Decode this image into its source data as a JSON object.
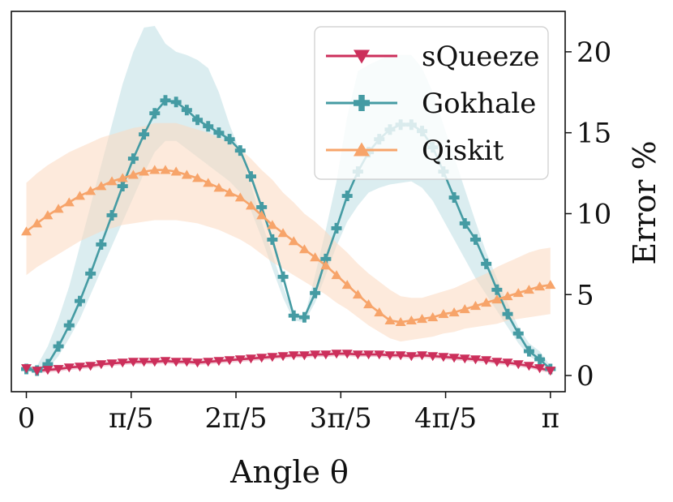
{
  "chart_data": {
    "type": "line",
    "xlabel": "Angle θ",
    "ylabel": "Error %",
    "xlim": [
      -0.09,
      3.23
    ],
    "ylim": [
      -1.0,
      22.5
    ],
    "xticks": [
      {
        "value": 0,
        "label": "0"
      },
      {
        "value": 0.6283,
        "label": "π/5"
      },
      {
        "value": 1.2566,
        "label": "2π/5"
      },
      {
        "value": 1.885,
        "label": "3π/5"
      },
      {
        "value": 2.5133,
        "label": "4π/5"
      },
      {
        "value": 3.1416,
        "label": "π"
      }
    ],
    "yticks": [
      0,
      5,
      10,
      15,
      20
    ],
    "yaxis_side": "right",
    "grid": false,
    "legend_position": "top-right",
    "series": [
      {
        "name": "sQueeze",
        "color": "#cc2f5b",
        "marker": "triangle-down",
        "x": [
          0,
          0.0641,
          0.1282,
          0.1923,
          0.2564,
          0.3206,
          0.3847,
          0.4488,
          0.5129,
          0.577,
          0.6411,
          0.7052,
          0.7693,
          0.8335,
          0.8976,
          0.9617,
          1.0258,
          1.0899,
          1.154,
          1.2181,
          1.2822,
          1.3464,
          1.4105,
          1.4746,
          1.5387,
          1.6028,
          1.6669,
          1.731,
          1.7952,
          1.8593,
          1.9234,
          1.9875,
          2.0516,
          2.1157,
          2.1798,
          2.2439,
          2.3081,
          2.3722,
          2.4363,
          2.5004,
          2.5645,
          2.6286,
          2.6927,
          2.7568,
          2.821,
          2.8851,
          2.9492,
          3.0133,
          3.0774,
          3.1416
        ],
        "y": [
          0.45,
          0.3,
          0.35,
          0.4,
          0.5,
          0.55,
          0.6,
          0.7,
          0.75,
          0.8,
          0.85,
          0.85,
          0.85,
          0.9,
          0.85,
          0.85,
          0.8,
          0.85,
          0.9,
          0.95,
          1.0,
          1.05,
          1.1,
          1.15,
          1.2,
          1.25,
          1.25,
          1.3,
          1.3,
          1.35,
          1.35,
          1.3,
          1.3,
          1.3,
          1.25,
          1.25,
          1.2,
          1.25,
          1.2,
          1.15,
          1.1,
          1.05,
          1.0,
          0.95,
          0.85,
          0.8,
          0.7,
          0.6,
          0.45,
          0.3
        ],
        "band_halfwidth": 0.15
      },
      {
        "name": "Gokhale",
        "color": "#459ba3",
        "band_color": "#bddfe3",
        "marker": "plus",
        "x": [
          0,
          0.0641,
          0.1282,
          0.1923,
          0.2564,
          0.3206,
          0.3847,
          0.4488,
          0.5129,
          0.577,
          0.6411,
          0.7052,
          0.7693,
          0.8335,
          0.8976,
          0.9617,
          1.0258,
          1.0899,
          1.154,
          1.2181,
          1.2822,
          1.3464,
          1.4105,
          1.4746,
          1.5387,
          1.6028,
          1.6669,
          1.731,
          1.7952,
          1.8593,
          1.9234,
          1.9875,
          2.0516,
          2.1157,
          2.1798,
          2.2439,
          2.3081,
          2.3722,
          2.4363,
          2.5004,
          2.5645,
          2.6286,
          2.6927,
          2.7568,
          2.821,
          2.8851,
          2.9492,
          3.0133,
          3.0774,
          3.1416
        ],
        "y": [
          0.4,
          0.3,
          0.7,
          1.8,
          3.1,
          4.6,
          6.3,
          8.1,
          9.9,
          11.7,
          13.4,
          14.9,
          16.2,
          17.0,
          16.9,
          16.4,
          15.8,
          15.4,
          15.0,
          14.6,
          13.9,
          12.3,
          10.4,
          8.4,
          6.1,
          3.7,
          3.6,
          5.1,
          7.2,
          9.1,
          11.1,
          12.6,
          13.8,
          14.6,
          15.2,
          15.5,
          15.5,
          15.1,
          14.1,
          12.6,
          11.0,
          9.4,
          8.4,
          6.9,
          5.3,
          3.8,
          2.6,
          1.5,
          1.0,
          0.4
        ],
        "upper": [
          0.5,
          0.6,
          1.8,
          3.5,
          5.5,
          8.0,
          10.5,
          13.0,
          15.5,
          18.0,
          20.0,
          21.5,
          21.6,
          20.5,
          20.0,
          19.8,
          19.5,
          19.0,
          17.5,
          15.5,
          13.8,
          11.8,
          9.5,
          7.5,
          5.5,
          3.8,
          3.6,
          6.2,
          9.0,
          12.0,
          16.0,
          18.8,
          19.2,
          19.5,
          19.8,
          19.8,
          19.8,
          19.0,
          17.5,
          15.5,
          13.5,
          11.5,
          9.5,
          7.6,
          6.0,
          4.5,
          3.0,
          2.0,
          1.5,
          0.6
        ],
        "lower": [
          0.3,
          0.2,
          0.4,
          1.2,
          2.3,
          3.5,
          5.0,
          6.5,
          8.0,
          9.5,
          11.0,
          12.5,
          13.8,
          14.5,
          14.5,
          14.0,
          13.5,
          13.0,
          12.5,
          12.0,
          11.3,
          10.2,
          8.5,
          6.6,
          4.8,
          3.4,
          3.3,
          4.5,
          6.2,
          8.0,
          9.5,
          10.5,
          11.3,
          11.6,
          11.8,
          11.9,
          12.0,
          11.6,
          10.8,
          9.6,
          8.4,
          7.2,
          6.0,
          5.0,
          4.0,
          3.0,
          2.0,
          1.2,
          0.8,
          0.3
        ]
      },
      {
        "name": "Qiskit",
        "color": "#f7a46a",
        "band_color": "#fcd9bf",
        "marker": "triangle-up",
        "x": [
          0,
          0.0641,
          0.1282,
          0.1923,
          0.2564,
          0.3206,
          0.3847,
          0.4488,
          0.5129,
          0.577,
          0.6411,
          0.7052,
          0.7693,
          0.8335,
          0.8976,
          0.9617,
          1.0258,
          1.0899,
          1.154,
          1.2181,
          1.2822,
          1.3464,
          1.4105,
          1.4746,
          1.5387,
          1.6028,
          1.6669,
          1.731,
          1.7952,
          1.8593,
          1.9234,
          1.9875,
          2.0516,
          2.1157,
          2.1798,
          2.2439,
          2.3081,
          2.3722,
          2.4363,
          2.5004,
          2.5645,
          2.6286,
          2.6927,
          2.7568,
          2.821,
          2.8851,
          2.9492,
          3.0133,
          3.0774,
          3.1416
        ],
        "y": [
          8.9,
          9.4,
          9.9,
          10.3,
          10.7,
          11.1,
          11.4,
          11.7,
          12.0,
          12.2,
          12.4,
          12.6,
          12.7,
          12.7,
          12.6,
          12.4,
          12.2,
          11.9,
          11.6,
          11.3,
          11.0,
          10.5,
          9.9,
          9.3,
          8.8,
          8.3,
          7.8,
          7.3,
          6.8,
          6.2,
          5.6,
          5.0,
          4.4,
          3.9,
          3.4,
          3.3,
          3.4,
          3.5,
          3.6,
          3.8,
          3.9,
          4.1,
          4.3,
          4.5,
          4.7,
          4.9,
          5.1,
          5.3,
          5.5,
          5.6
        ],
        "upper": [
          11.9,
          12.5,
          13.0,
          13.4,
          13.8,
          14.1,
          14.4,
          14.7,
          14.9,
          15.1,
          15.3,
          15.4,
          15.6,
          15.6,
          15.6,
          15.4,
          15.2,
          15.0,
          14.7,
          14.4,
          14.0,
          13.4,
          12.7,
          12.1,
          11.3,
          10.7,
          10.0,
          9.5,
          8.9,
          8.2,
          7.6,
          6.9,
          6.3,
          5.8,
          5.3,
          4.9,
          4.8,
          4.8,
          5.0,
          5.2,
          5.4,
          5.7,
          6.0,
          6.3,
          6.7,
          7.0,
          7.3,
          7.6,
          7.8,
          7.9
        ],
        "lower": [
          6.2,
          6.7,
          7.1,
          7.5,
          7.9,
          8.3,
          8.6,
          8.9,
          9.1,
          9.3,
          9.4,
          9.5,
          9.6,
          9.6,
          9.6,
          9.5,
          9.4,
          9.2,
          9.0,
          8.7,
          8.4,
          8.0,
          7.5,
          7.0,
          6.6,
          6.2,
          5.8,
          5.4,
          5.0,
          4.5,
          4.1,
          3.6,
          3.1,
          2.7,
          2.3,
          2.1,
          2.2,
          2.3,
          2.4,
          2.6,
          2.7,
          2.9,
          3.0,
          3.1,
          3.2,
          3.4,
          3.5,
          3.6,
          3.7,
          3.8
        ]
      }
    ]
  }
}
